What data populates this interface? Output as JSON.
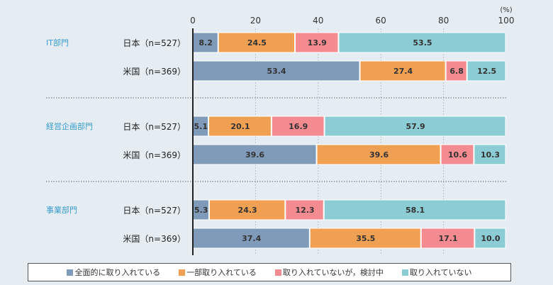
{
  "chart_data": {
    "type": "bar",
    "orientation": "horizontal-stacked-100",
    "unit_label": "(%)",
    "xlim": [
      0,
      100
    ],
    "ticks": [
      0,
      20,
      40,
      60,
      80,
      100
    ],
    "series": [
      {
        "name": "全面的に取り入れている",
        "color": "#7f9bb9"
      },
      {
        "name": "一部取り入れている",
        "color": "#f0a052"
      },
      {
        "name": "取り入れていないが，検討中",
        "color": "#f48b90"
      },
      {
        "name": "取り入れていない",
        "color": "#8ccdd5"
      }
    ],
    "groups": [
      {
        "name": "IT部門",
        "rows": [
          {
            "label": "日本（n=527）",
            "values": [
              8.2,
              24.5,
              13.9,
              53.5
            ]
          },
          {
            "label": "米国（n=369）",
            "values": [
              53.4,
              27.4,
              6.8,
              12.5
            ]
          }
        ]
      },
      {
        "name": "経営企画部門",
        "rows": [
          {
            "label": "日本（n=527）",
            "values": [
              5.1,
              20.1,
              16.9,
              57.9
            ]
          },
          {
            "label": "米国（n=369）",
            "values": [
              39.6,
              39.6,
              10.6,
              10.3
            ]
          }
        ]
      },
      {
        "name": "事業部門",
        "rows": [
          {
            "label": "日本（n=527）",
            "values": [
              5.3,
              24.3,
              12.3,
              58.1
            ]
          },
          {
            "label": "米国（n=369）",
            "values": [
              37.4,
              35.5,
              17.1,
              10.0
            ]
          }
        ]
      }
    ]
  }
}
